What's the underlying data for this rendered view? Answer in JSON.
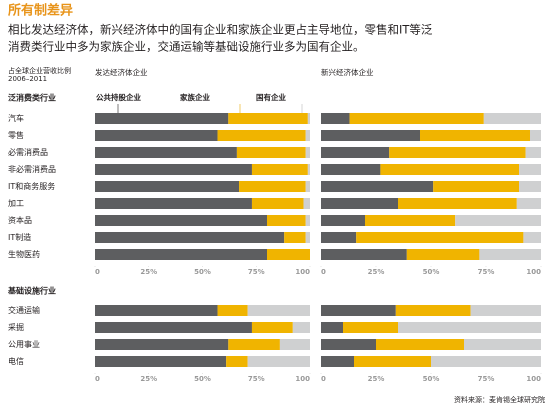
{
  "header": {
    "title": "所有制差异",
    "subtitle_lines": [
      "相比发达经济体，新兴经济体中的国有企业和家族企业更占主导地位，零售和IT等泛",
      "消费类行业中多为家族企业，交通运输等基础设施行业多为国有企业。"
    ]
  },
  "row_header": [
    "占全球企业营收比例",
    "2006–2011"
  ],
  "source": "资料来源：麦肯锡全球研究院",
  "chart_data": {
    "type": "bar",
    "orientation": "horizontal",
    "stacked": true,
    "series": [
      {
        "name": "公共持股企业",
        "color": "#5d5e60"
      },
      {
        "name": "家族企业",
        "color": "#f0b400"
      },
      {
        "name": "国有企业",
        "color": "#cfd0d1"
      }
    ],
    "panels": [
      {
        "title": "发达经济体企业"
      },
      {
        "title": "新兴经济体企业"
      }
    ],
    "xlim": [
      0,
      100
    ],
    "xticks": [
      0,
      {
        "value": 25,
        "label": "25%"
      },
      {
        "value": 50,
        "label": "50%"
      },
      {
        "value": 75,
        "label": "75%"
      },
      100
    ],
    "groups": [
      {
        "title": "泛消费类行业",
        "categories": [
          "汽车",
          "零售",
          "必需消费品",
          "非必需消费品",
          "IT和商务服务",
          "加工",
          "资本品",
          "IT制造",
          "生物医药"
        ],
        "values": [
          [
            [
              62,
              57,
              66,
              73,
              67,
              73,
              80,
              88,
              80
            ],
            [
              37,
              41,
              32,
              26,
              31,
              24,
              18,
              10,
              20
            ],
            [
              1,
              2,
              2,
              1,
              2,
              3,
              2,
              2,
              0
            ]
          ],
          [
            [
              13,
              45,
              31,
              27,
              51,
              35,
              20,
              16,
              39
            ],
            [
              61,
              50,
              62,
              63,
              39,
              54,
              41,
              76,
              33
            ],
            [
              26,
              5,
              7,
              10,
              10,
              11,
              39,
              8,
              28
            ]
          ]
        ]
      },
      {
        "title": "基础设施行业",
        "categories": [
          "交通运输",
          "采掘",
          "公用事业",
          "电信"
        ],
        "values": [
          [
            [
              57,
              73,
              62,
              61
            ],
            [
              14,
              19,
              24,
              10
            ],
            [
              29,
              8,
              14,
              29
            ]
          ],
          [
            [
              34,
              10,
              25,
              15
            ],
            [
              34,
              25,
              40,
              35
            ],
            [
              32,
              65,
              35,
              50
            ]
          ]
        ]
      }
    ]
  }
}
